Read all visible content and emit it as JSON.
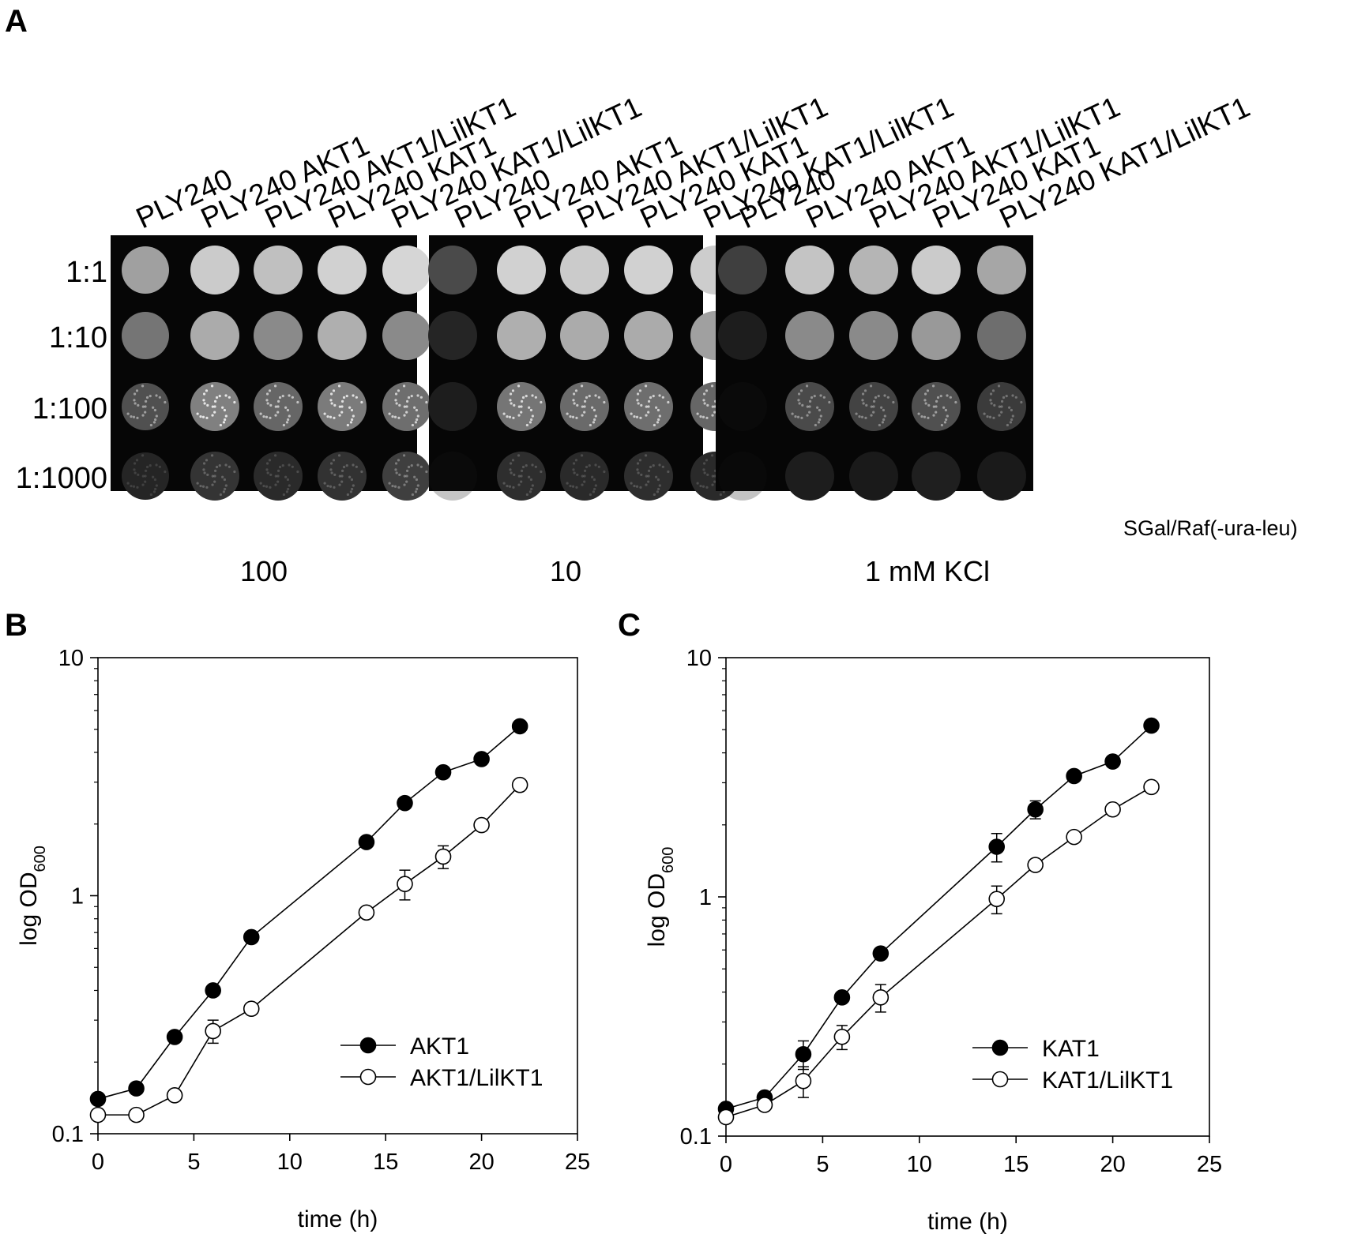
{
  "panel_a": {
    "letter": "A",
    "strains": [
      "PLY240",
      "PLY240  AKT1",
      "PLY240  AKT1/LilKT1",
      "PLY240  KAT1",
      "PLY240  KAT1/LilKT1"
    ],
    "dilutions": [
      "1:1",
      "1:10",
      "1:100",
      "1:1000"
    ],
    "medium": "SGal/Raf(-ura-leu)",
    "conditions": [
      {
        "label": "100",
        "growth": [
          [
            0.65,
            0.85,
            0.8,
            0.88,
            0.9
          ],
          [
            0.45,
            0.7,
            0.55,
            0.72,
            0.55
          ],
          [
            0.28,
            0.5,
            0.38,
            0.48,
            0.42
          ],
          [
            0.08,
            0.15,
            0.1,
            0.14,
            0.2
          ]
        ]
      },
      {
        "label": "10",
        "growth": [
          [
            0.25,
            0.88,
            0.85,
            0.88,
            0.86
          ],
          [
            0.08,
            0.72,
            0.7,
            0.7,
            0.65
          ],
          [
            0.04,
            0.45,
            0.4,
            0.42,
            0.38
          ],
          [
            0.02,
            0.12,
            0.1,
            0.12,
            0.1
          ]
        ]
      },
      {
        "label": "1 mM  KCl",
        "growth": [
          [
            0.2,
            0.82,
            0.75,
            0.85,
            0.68
          ],
          [
            0.04,
            0.55,
            0.55,
            0.62,
            0.42
          ],
          [
            0.02,
            0.25,
            0.22,
            0.28,
            0.18
          ],
          [
            0.0,
            0.04,
            0.03,
            0.05,
            0.03
          ]
        ]
      }
    ]
  },
  "chart_data": [
    {
      "panel": "B",
      "type": "line",
      "xlabel": "time (h)",
      "ylabel": "log OD",
      "ylabel_sub": "600",
      "xlim": [
        0,
        25
      ],
      "ylim": [
        0.1,
        10
      ],
      "yscale": "log",
      "xticks": [
        "0",
        "5",
        "10",
        "15",
        "20",
        "25"
      ],
      "yticks": [
        "0.1",
        "1",
        "10"
      ],
      "legend_position": "bottom-right",
      "series": [
        {
          "name": "AKT1",
          "marker": "filled-circle",
          "x": [
            0,
            2,
            4,
            6,
            8,
            14,
            16,
            18,
            20,
            22
          ],
          "y": [
            0.14,
            0.155,
            0.255,
            0.4,
            0.67,
            1.68,
            2.45,
            3.3,
            3.75,
            5.15
          ],
          "err": [
            0,
            0,
            0,
            0,
            0,
            0,
            0,
            0,
            0,
            0
          ]
        },
        {
          "name": "AKT1/LilKT1",
          "marker": "open-circle",
          "x": [
            0,
            2,
            4,
            6,
            8,
            14,
            16,
            18,
            20,
            22
          ],
          "y": [
            0.12,
            0.12,
            0.145,
            0.27,
            0.335,
            0.85,
            1.12,
            1.46,
            1.98,
            2.92
          ],
          "err": [
            0,
            0,
            0,
            0.03,
            0,
            0,
            0.16,
            0.16,
            0,
            0
          ]
        }
      ]
    },
    {
      "panel": "C",
      "type": "line",
      "xlabel": "time (h)",
      "ylabel": "log OD",
      "ylabel_sub": "600",
      "xlim": [
        0,
        25
      ],
      "ylim": [
        0.1,
        10
      ],
      "yscale": "log",
      "xticks": [
        "0",
        "5",
        "10",
        "15",
        "20",
        "25"
      ],
      "yticks": [
        "0.1",
        "1",
        "10"
      ],
      "legend_position": "bottom-right",
      "series": [
        {
          "name": "KAT1",
          "marker": "filled-circle",
          "x": [
            0,
            2,
            4,
            6,
            8,
            14,
            16,
            18,
            20,
            22
          ],
          "y": [
            0.13,
            0.145,
            0.22,
            0.38,
            0.58,
            1.62,
            2.32,
            3.2,
            3.68,
            5.2
          ],
          "err": [
            0,
            0,
            0.03,
            0,
            0,
            0.22,
            0.2,
            0,
            0,
            0
          ]
        },
        {
          "name": "KAT1/LilKT1",
          "marker": "open-circle",
          "x": [
            0,
            2,
            4,
            6,
            8,
            14,
            16,
            18,
            20,
            22
          ],
          "y": [
            0.12,
            0.135,
            0.17,
            0.26,
            0.38,
            0.98,
            1.36,
            1.78,
            2.32,
            2.88
          ],
          "err": [
            0,
            0,
            0.025,
            0.03,
            0.05,
            0.13,
            0,
            0,
            0,
            0
          ]
        }
      ]
    }
  ]
}
